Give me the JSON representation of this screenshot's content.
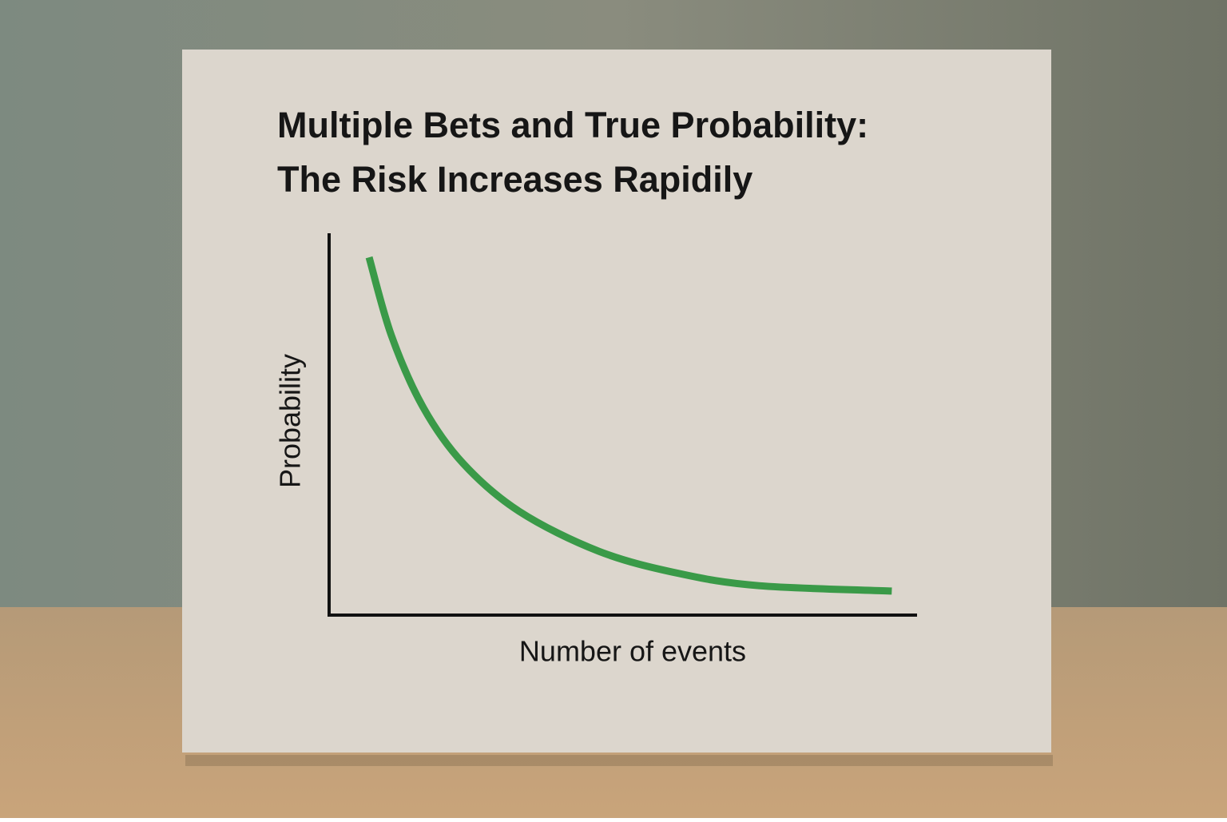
{
  "chart_data": {
    "type": "line",
    "title": [
      "Multiple Bets and True Probability:",
      "The Risk Increases Rapidily"
    ],
    "x_label": "Number of events",
    "y_label": "Probability",
    "x": [
      0.068,
      0.106,
      0.16,
      0.228,
      0.323,
      0.459,
      0.595,
      0.731,
      0.957
    ],
    "series": [
      {
        "color": "#3a9a48",
        "values": [
          0.937,
          0.732,
          0.544,
          0.397,
          0.272,
          0.167,
          0.109,
          0.077,
          0.063
        ]
      }
    ],
    "xlim": [
      0,
      1
    ],
    "ylim": [
      0,
      1
    ]
  }
}
